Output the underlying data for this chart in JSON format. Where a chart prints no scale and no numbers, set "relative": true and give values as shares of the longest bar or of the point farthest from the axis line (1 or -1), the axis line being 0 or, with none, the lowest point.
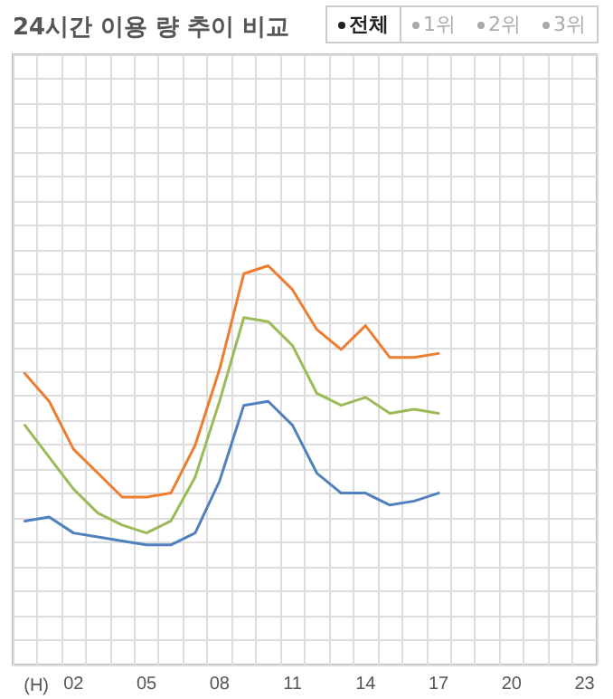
{
  "chart_data": {
    "type": "line",
    "title": "24시간 이용 량 추이 비교",
    "xlabel": "(H)",
    "annotations": [
      "전체",
      "1위",
      "2위",
      "3위"
    ],
    "categories": [
      null,
      null,
      "02",
      null,
      null,
      "05",
      null,
      null,
      "08",
      null,
      null,
      "11",
      null,
      null,
      "14",
      null,
      null,
      "17",
      null,
      null,
      "20",
      null,
      null,
      "23"
    ],
    "relative": true,
    "grid": true,
    "marker": "none",
    "line_style": "solid",
    "series": [
      {
        "color": "#ed7d31",
        "values": [
          0.73,
          0.66,
          0.54,
          0.48,
          0.42,
          0.42,
          0.43,
          0.55,
          0.74,
          0.98,
          1,
          0.94,
          0.84,
          0.79,
          0.85,
          0.77,
          0.77,
          0.78,
          null,
          null,
          null,
          null,
          null,
          null
        ]
      },
      {
        "color": "#9bbb59",
        "values": [
          0.6,
          0.52,
          0.44,
          0.38,
          0.35,
          0.33,
          0.36,
          0.47,
          0.66,
          0.87,
          0.86,
          0.8,
          0.68,
          0.65,
          0.67,
          0.63,
          0.64,
          0.63,
          null,
          null,
          null,
          null,
          null,
          null
        ]
      },
      {
        "color": "#4f81bd",
        "values": [
          0.36,
          0.37,
          0.33,
          0.32,
          0.31,
          0.3,
          0.3,
          0.33,
          0.46,
          0.65,
          0.66,
          0.6,
          0.48,
          0.43,
          0.43,
          0.4,
          0.41,
          0.43,
          null,
          null,
          null,
          null,
          null,
          null
        ]
      }
    ]
  }
}
